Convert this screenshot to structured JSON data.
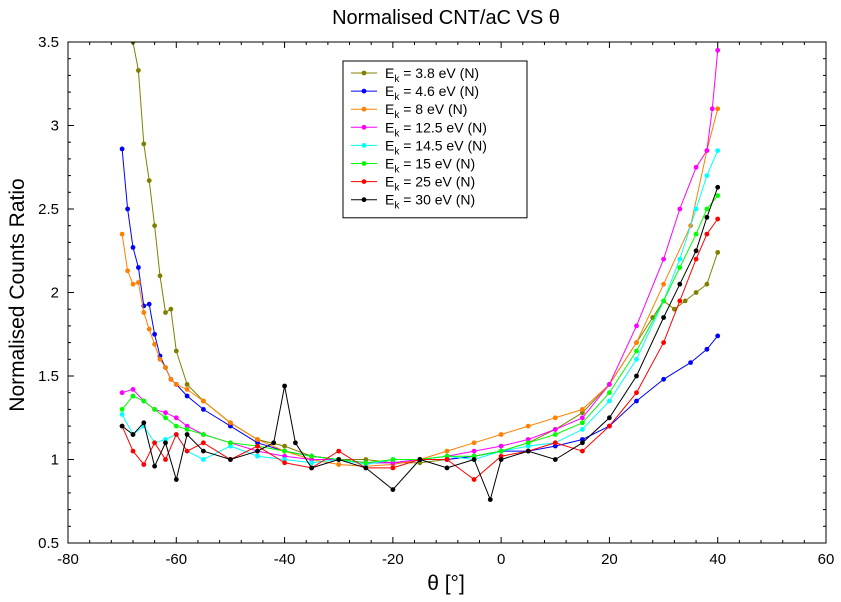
{
  "chart_data": {
    "type": "line",
    "title": "Normalised CNT/aC VS θ",
    "xlabel": "θ [°]",
    "ylabel": "Normalised Counts Ratio",
    "xlim": [
      -80,
      60
    ],
    "ylim": [
      0.5,
      3.5
    ],
    "xticks": [
      -80,
      -60,
      -40,
      -20,
      0,
      20,
      40,
      60
    ],
    "yticks": [
      0.5,
      1,
      1.5,
      2,
      2.5,
      3,
      3.5
    ],
    "xtick_labels": [
      "-80",
      "-60",
      "-40",
      "-20",
      "0",
      "20",
      "40",
      "60"
    ],
    "ytick_labels": [
      "0.5",
      "1",
      "1.5",
      "2",
      "2.5",
      "3",
      "3.5"
    ],
    "grid": false,
    "legend_position": "top-center",
    "series": [
      {
        "name": "E_k = 3.8 eV (N)",
        "legend": {
          "prefix": "E",
          "sub": "k",
          "suffix": " = 3.8 eV (N)"
        },
        "color": "#808000",
        "x": [
          -68,
          -67,
          -66,
          -65,
          -64,
          -63,
          -62,
          -61,
          -60,
          -58,
          -55,
          -50,
          -45,
          -40,
          -35,
          -30,
          -25,
          -20,
          -15,
          -10,
          -5,
          0,
          5,
          10,
          15,
          20,
          25,
          28,
          30,
          32,
          34,
          36,
          38,
          40
        ],
        "y": [
          3.5,
          3.33,
          2.89,
          2.67,
          2.4,
          2.1,
          1.88,
          1.9,
          1.65,
          1.45,
          1.35,
          1.22,
          1.12,
          1.08,
          1.02,
          1.0,
          1.0,
          0.98,
          0.98,
          1.0,
          1.02,
          1.05,
          1.1,
          1.18,
          1.28,
          1.45,
          1.7,
          1.85,
          1.95,
          1.9,
          1.95,
          2.0,
          2.05,
          2.24
        ]
      },
      {
        "name": "E_k = 4.6 eV (N)",
        "legend": {
          "prefix": "E",
          "sub": "k",
          "suffix": " = 4.6 eV (N)"
        },
        "color": "#0000ff",
        "x": [
          -70,
          -69,
          -68,
          -67,
          -66,
          -65,
          -64,
          -63,
          -62,
          -61,
          -60,
          -58,
          -55,
          -50,
          -45,
          -40,
          -35,
          -30,
          -25,
          -20,
          -15,
          -10,
          -5,
          0,
          5,
          10,
          15,
          20,
          25,
          30,
          35,
          38,
          40
        ],
        "y": [
          2.86,
          2.5,
          2.27,
          2.15,
          1.92,
          1.93,
          1.75,
          1.62,
          1.55,
          1.48,
          1.45,
          1.38,
          1.3,
          1.2,
          1.1,
          1.05,
          1.02,
          1.0,
          0.98,
          0.98,
          1.0,
          1.0,
          1.02,
          1.05,
          1.05,
          1.08,
          1.12,
          1.2,
          1.35,
          1.48,
          1.58,
          1.66,
          1.74
        ]
      },
      {
        "name": "E_k = 8 eV (N)",
        "legend": {
          "prefix": "E",
          "sub": "k",
          "suffix": " = 8 eV (N)"
        },
        "color": "#ff8000",
        "x": [
          -70,
          -69,
          -68,
          -67,
          -66,
          -65,
          -64,
          -63,
          -62,
          -61,
          -60,
          -58,
          -55,
          -50,
          -45,
          -40,
          -35,
          -30,
          -25,
          -20,
          -15,
          -10,
          -5,
          0,
          5,
          10,
          15,
          20,
          25,
          30,
          35,
          38,
          40
        ],
        "y": [
          2.35,
          2.13,
          2.05,
          2.06,
          1.88,
          1.78,
          1.69,
          1.6,
          1.55,
          1.48,
          1.45,
          1.42,
          1.35,
          1.22,
          1.12,
          1.05,
          1.0,
          0.97,
          0.96,
          0.97,
          1.0,
          1.05,
          1.1,
          1.15,
          1.2,
          1.25,
          1.3,
          1.45,
          1.7,
          2.05,
          2.4,
          2.85,
          3.1
        ]
      },
      {
        "name": "E_k = 12.5 eV (N)",
        "legend": {
          "prefix": "E",
          "sub": "k",
          "suffix": " = 12.5 eV (N)"
        },
        "color": "#ff00ff",
        "x": [
          -70,
          -68,
          -66,
          -64,
          -62,
          -60,
          -58,
          -55,
          -50,
          -45,
          -40,
          -35,
          -30,
          -25,
          -20,
          -15,
          -10,
          -5,
          0,
          5,
          10,
          15,
          20,
          25,
          30,
          33,
          36,
          38,
          39,
          40
        ],
        "y": [
          1.4,
          1.42,
          1.35,
          1.3,
          1.28,
          1.25,
          1.2,
          1.15,
          1.1,
          1.05,
          1.02,
          1.0,
          1.0,
          0.98,
          0.98,
          1.0,
          1.02,
          1.05,
          1.08,
          1.12,
          1.18,
          1.25,
          1.45,
          1.8,
          2.2,
          2.5,
          2.75,
          2.85,
          3.1,
          3.45
        ]
      },
      {
        "name": "E_k = 14.5 eV (N)",
        "legend": {
          "prefix": "E",
          "sub": "k",
          "suffix": " = 14.5 eV (N)"
        },
        "color": "#00ffff",
        "x": [
          -70,
          -68,
          -66,
          -64,
          -62,
          -60,
          -58,
          -55,
          -50,
          -45,
          -40,
          -35,
          -30,
          -25,
          -20,
          -15,
          -10,
          -5,
          0,
          5,
          10,
          15,
          20,
          25,
          30,
          33,
          36,
          38,
          40
        ],
        "y": [
          1.27,
          1.15,
          1.2,
          1.1,
          1.12,
          1.15,
          1.05,
          1.0,
          1.08,
          1.02,
          1.0,
          0.98,
          1.0,
          0.97,
          1.0,
          1.0,
          1.02,
          1.0,
          1.05,
          1.08,
          1.1,
          1.18,
          1.35,
          1.6,
          1.95,
          2.2,
          2.5,
          2.7,
          2.85
        ]
      },
      {
        "name": "E_k = 15 eV (N)",
        "legend": {
          "prefix": "E",
          "sub": "k",
          "suffix": " = 15 eV (N)"
        },
        "color": "#00ff00",
        "x": [
          -70,
          -68,
          -66,
          -64,
          -62,
          -60,
          -58,
          -55,
          -50,
          -45,
          -40,
          -35,
          -30,
          -25,
          -20,
          -15,
          -10,
          -5,
          0,
          5,
          10,
          15,
          20,
          25,
          30,
          33,
          36,
          38,
          40
        ],
        "y": [
          1.3,
          1.38,
          1.35,
          1.3,
          1.25,
          1.2,
          1.18,
          1.15,
          1.1,
          1.08,
          1.05,
          1.02,
          1.0,
          0.98,
          1.0,
          1.0,
          1.02,
          1.02,
          1.05,
          1.1,
          1.15,
          1.22,
          1.4,
          1.65,
          1.95,
          2.15,
          2.35,
          2.5,
          2.58
        ]
      },
      {
        "name": "E_k = 25 eV (N)",
        "legend": {
          "prefix": "E",
          "sub": "k",
          "suffix": " = 25 eV (N)"
        },
        "color": "#ff0000",
        "x": [
          -70,
          -68,
          -66,
          -64,
          -62,
          -60,
          -58,
          -55,
          -50,
          -45,
          -40,
          -35,
          -30,
          -25,
          -20,
          -15,
          -10,
          -5,
          0,
          5,
          10,
          15,
          20,
          25,
          30,
          33,
          36,
          38,
          40
        ],
        "y": [
          1.2,
          1.05,
          0.97,
          1.1,
          1.0,
          1.15,
          1.05,
          1.1,
          1.0,
          1.08,
          0.98,
          0.95,
          1.05,
          0.95,
          0.95,
          1.0,
          1.0,
          0.88,
          1.02,
          1.05,
          1.1,
          1.05,
          1.2,
          1.4,
          1.7,
          1.95,
          2.2,
          2.35,
          2.44
        ]
      },
      {
        "name": "E_k = 30 eV (N)",
        "legend": {
          "prefix": "E",
          "sub": "k",
          "suffix": " = 30 eV (N)"
        },
        "color": "#000000",
        "x": [
          -70,
          -68,
          -66,
          -64,
          -62,
          -60,
          -58,
          -55,
          -50,
          -45,
          -42,
          -40,
          -38,
          -35,
          -30,
          -25,
          -20,
          -15,
          -10,
          -5,
          -2,
          0,
          5,
          10,
          15,
          20,
          25,
          30,
          33,
          36,
          38,
          40
        ],
        "y": [
          1.2,
          1.15,
          1.22,
          0.96,
          1.1,
          0.88,
          1.15,
          1.05,
          1.0,
          1.05,
          1.1,
          1.44,
          1.1,
          0.95,
          1.0,
          0.95,
          0.82,
          1.0,
          0.95,
          1.0,
          0.76,
          1.0,
          1.05,
          1.0,
          1.1,
          1.25,
          1.5,
          1.85,
          2.05,
          2.25,
          2.45,
          2.63
        ]
      }
    ]
  }
}
